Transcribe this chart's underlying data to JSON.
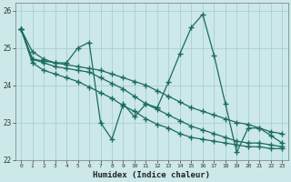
{
  "xlabel": "Humidex (Indice chaleur)",
  "bg_color": "#cce8e8",
  "line_color": "#1a6b60",
  "grid_color": "#aad0d0",
  "xlim": [
    -0.5,
    23.5
  ],
  "ylim": [
    22,
    26.2
  ],
  "xticks": [
    0,
    1,
    2,
    3,
    4,
    5,
    6,
    7,
    8,
    9,
    10,
    11,
    12,
    13,
    14,
    15,
    16,
    17,
    18,
    19,
    20,
    21,
    22,
    23
  ],
  "yticks": [
    22,
    23,
    24,
    25,
    26
  ],
  "lines": [
    [
      25.5,
      24.9,
      24.7,
      24.6,
      24.6,
      25.0,
      25.15,
      23.0,
      22.55,
      23.5,
      23.15,
      23.5,
      23.4,
      24.1,
      24.85,
      25.55,
      25.9,
      24.8,
      23.5,
      22.2,
      22.85,
      22.85,
      22.65,
      22.45
    ],
    [
      25.5,
      24.7,
      24.65,
      24.6,
      24.55,
      24.5,
      24.45,
      24.4,
      24.3,
      24.2,
      24.1,
      24.0,
      23.85,
      23.7,
      23.55,
      23.4,
      23.3,
      23.2,
      23.1,
      23.0,
      22.95,
      22.85,
      22.75,
      22.7
    ],
    [
      25.5,
      24.7,
      24.6,
      24.5,
      24.45,
      24.4,
      24.35,
      24.2,
      24.05,
      23.9,
      23.7,
      23.5,
      23.35,
      23.2,
      23.05,
      22.9,
      22.8,
      22.7,
      22.6,
      22.5,
      22.45,
      22.45,
      22.4,
      22.35
    ],
    [
      25.5,
      24.6,
      24.4,
      24.3,
      24.2,
      24.1,
      23.95,
      23.8,
      23.65,
      23.45,
      23.3,
      23.1,
      22.95,
      22.85,
      22.7,
      22.6,
      22.55,
      22.5,
      22.45,
      22.4,
      22.35,
      22.35,
      22.3,
      22.3
    ]
  ]
}
